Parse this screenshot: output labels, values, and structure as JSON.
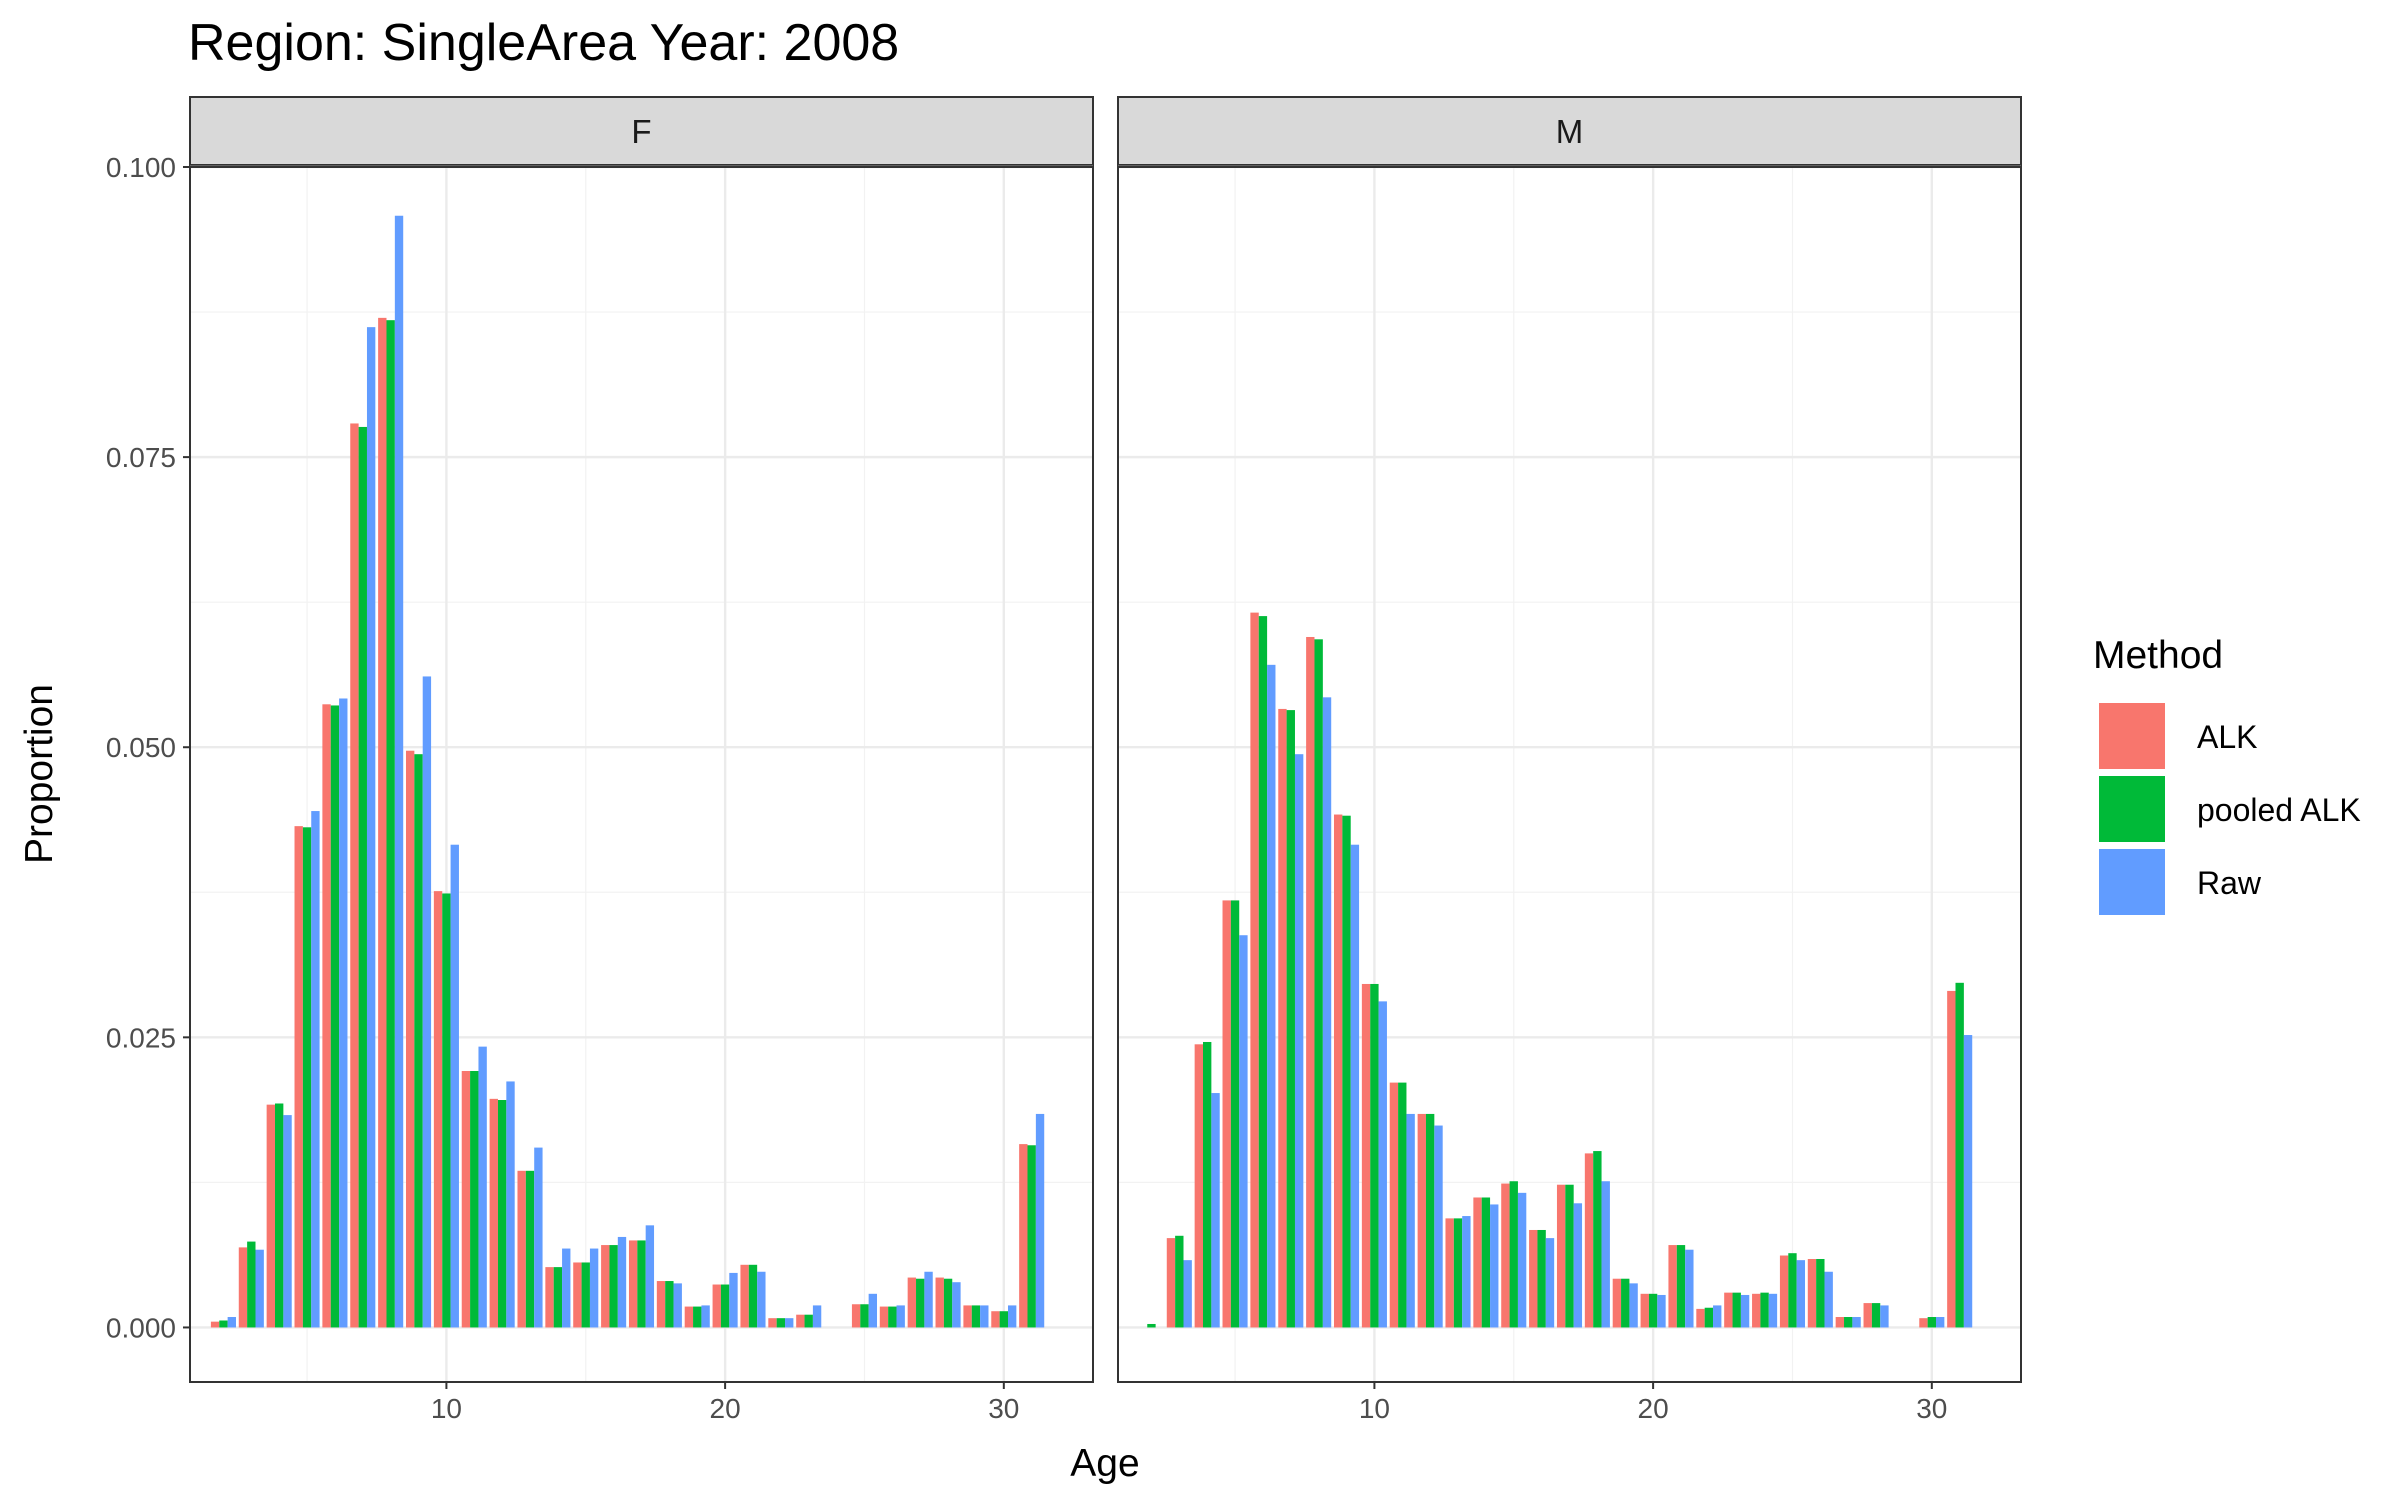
{
  "chart_data": {
    "type": "bar",
    "title": "Region: SingleArea Year: 2008",
    "xlabel": "Age",
    "ylabel": "Proportion",
    "xlim": [
      0.8,
      33.2
    ],
    "ylim": [
      -0.0047,
      0.1
    ],
    "x_ticks": [
      10,
      20,
      30
    ],
    "x_tick_labels": [
      "10",
      "20",
      "30"
    ],
    "y_ticks": [
      0,
      0.025,
      0.05,
      0.075,
      0.1
    ],
    "y_tick_labels": [
      "0.000",
      "0.025",
      "0.050",
      "0.075",
      "0.100"
    ],
    "grid": true,
    "legend": {
      "title": "Method",
      "position": "right",
      "entries": [
        {
          "name": "ALK",
          "color": "#F8766D"
        },
        {
          "name": "pooled ALK",
          "color": "#00BA38"
        },
        {
          "name": "Raw",
          "color": "#619CFF"
        }
      ]
    },
    "facets": [
      {
        "label": "F",
        "ages": [
          2,
          3,
          4,
          5,
          6,
          7,
          8,
          9,
          10,
          11,
          12,
          13,
          14,
          15,
          16,
          17,
          18,
          19,
          20,
          21,
          22,
          23,
          25,
          26,
          27,
          28,
          29,
          30,
          31
        ],
        "series": [
          {
            "name": "ALK",
            "color": "#F8766D",
            "values": [
              0.0005,
              0.0069,
              0.0192,
              0.0432,
              0.0537,
              0.0779,
              0.087,
              0.0497,
              0.0376,
              0.0221,
              0.0197,
              0.0135,
              0.0052,
              0.0056,
              0.0071,
              0.0075,
              0.004,
              0.0018,
              0.0037,
              0.0054,
              0.0008,
              0.0011,
              0.002,
              0.0018,
              0.0043,
              0.0043,
              0.0019,
              0.0014,
              0.0158
            ]
          },
          {
            "name": "pooled ALK",
            "color": "#00BA38",
            "values": [
              0.0006,
              0.0074,
              0.0193,
              0.0431,
              0.0536,
              0.0776,
              0.0868,
              0.0494,
              0.0374,
              0.0221,
              0.0196,
              0.0135,
              0.0052,
              0.0056,
              0.0071,
              0.0075,
              0.004,
              0.0018,
              0.0037,
              0.0054,
              0.0008,
              0.0011,
              0.002,
              0.0018,
              0.0042,
              0.0042,
              0.0019,
              0.0014,
              0.0157
            ]
          },
          {
            "name": "Raw",
            "color": "#619CFF",
            "values": [
              0.0009,
              0.0067,
              0.0183,
              0.0445,
              0.0542,
              0.0862,
              0.0958,
              0.0561,
              0.0416,
              0.0242,
              0.0212,
              0.0155,
              0.0068,
              0.0068,
              0.0078,
              0.0088,
              0.0038,
              0.0019,
              0.0047,
              0.0048,
              0.0008,
              0.0019,
              0.0029,
              0.0019,
              0.0048,
              0.0039,
              0.0019,
              0.0019,
              0.0184
            ]
          }
        ]
      },
      {
        "label": "M",
        "ages": [
          2,
          3,
          4,
          5,
          6,
          7,
          8,
          9,
          10,
          11,
          12,
          13,
          14,
          15,
          16,
          17,
          18,
          19,
          20,
          21,
          22,
          23,
          24,
          25,
          26,
          27,
          28,
          30,
          31
        ],
        "series": [
          {
            "name": "ALK",
            "color": "#F8766D",
            "values": [
              0.0,
              0.0077,
              0.0244,
              0.0368,
              0.0616,
              0.0533,
              0.0595,
              0.0442,
              0.0296,
              0.0211,
              0.0184,
              0.0094,
              0.0112,
              0.0124,
              0.0084,
              0.0123,
              0.015,
              0.0042,
              0.0029,
              0.0071,
              0.0016,
              0.003,
              0.0029,
              0.0062,
              0.0059,
              0.0009,
              0.0021,
              0.0008,
              0.029
            ]
          },
          {
            "name": "pooled ALK",
            "color": "#00BA38",
            "values": [
              0.0003,
              0.0079,
              0.0246,
              0.0368,
              0.0613,
              0.0532,
              0.0593,
              0.0441,
              0.0296,
              0.0211,
              0.0184,
              0.0094,
              0.0112,
              0.0126,
              0.0084,
              0.0123,
              0.0152,
              0.0042,
              0.0029,
              0.0071,
              0.0017,
              0.003,
              0.003,
              0.0064,
              0.0059,
              0.0009,
              0.0021,
              0.0009,
              0.0297
            ]
          },
          {
            "name": "Raw",
            "color": "#619CFF",
            "values": [
              0.0,
              0.0058,
              0.0202,
              0.0338,
              0.0571,
              0.0494,
              0.0543,
              0.0416,
              0.0281,
              0.0184,
              0.0174,
              0.0096,
              0.0106,
              0.0116,
              0.0077,
              0.0107,
              0.0126,
              0.0038,
              0.0028,
              0.0067,
              0.0019,
              0.0028,
              0.0029,
              0.0058,
              0.0048,
              0.0009,
              0.0019,
              0.0009,
              0.0252
            ]
          }
        ]
      }
    ]
  }
}
